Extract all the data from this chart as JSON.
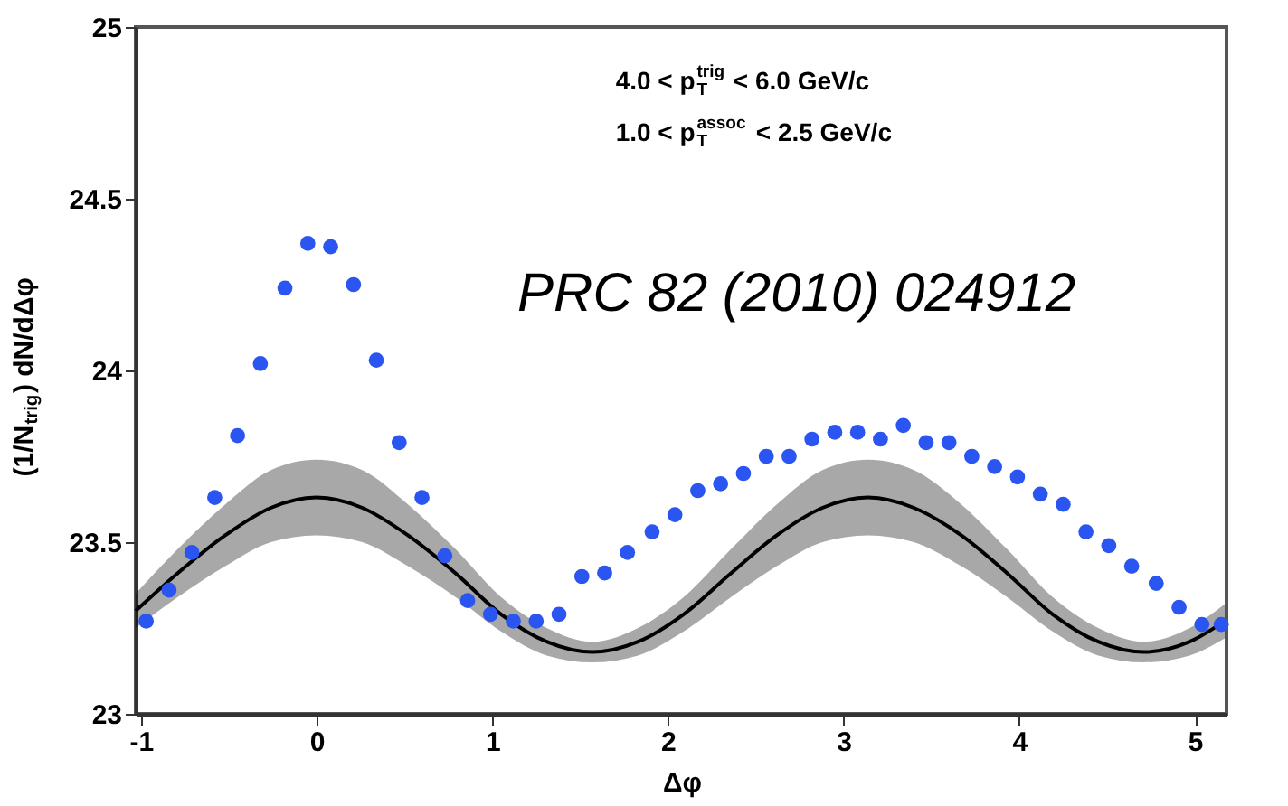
{
  "chart_data": {
    "type": "scatter",
    "xlabel": "Δφ",
    "ylabel": "(1/N$_{trig}$) dN/dΔφ",
    "xlim": [
      -1.03,
      5.18
    ],
    "xticks": [
      -1,
      0,
      1,
      2,
      3,
      4,
      5
    ],
    "ylim": [
      23,
      25
    ],
    "yticks": [
      23,
      23.5,
      24,
      24.5,
      25
    ],
    "grid": false,
    "marker": "circle",
    "annotations": [
      "4.0 < p$_{T}$$^{trig}$ < 6.0 GeV/c",
      "1.0 < p$_{T}$$^{assoc}$ < 2.5 GeV/c",
      "PRC 82 (2010) 024912"
    ],
    "series": [
      {
        "color": "#2a55f0",
        "x": [
          -0.97,
          -0.84,
          -0.71,
          -0.58,
          -0.45,
          -0.32,
          -0.18,
          -0.05,
          0.08,
          0.21,
          0.34,
          0.47,
          0.6,
          0.73,
          0.86,
          0.99,
          1.12,
          1.25,
          1.38,
          1.51,
          1.64,
          1.77,
          1.91,
          2.04,
          2.17,
          2.3,
          2.43,
          2.56,
          2.69,
          2.82,
          2.95,
          3.08,
          3.21,
          3.34,
          3.47,
          3.6,
          3.73,
          3.86,
          3.99,
          4.12,
          4.25,
          4.38,
          4.51,
          4.64,
          4.78,
          4.91,
          5.04,
          5.15
        ],
        "values": [
          23.27,
          23.36,
          23.47,
          23.63,
          23.81,
          24.02,
          24.24,
          24.37,
          24.36,
          24.25,
          24.03,
          23.79,
          23.63,
          23.46,
          23.33,
          23.29,
          23.27,
          23.27,
          23.29,
          23.4,
          23.41,
          23.47,
          23.53,
          23.58,
          23.65,
          23.67,
          23.7,
          23.75,
          23.75,
          23.8,
          23.82,
          23.82,
          23.8,
          23.84,
          23.79,
          23.79,
          23.75,
          23.72,
          23.69,
          23.64,
          23.61,
          23.53,
          23.49,
          23.43,
          23.38,
          23.31,
          23.26,
          23.26
        ]
      },
      {
        "type": "line",
        "marker": "none",
        "color": "#000000",
        "x": [
          -1.03,
          -0.79,
          -0.52,
          -0.26,
          0,
          0.26,
          0.52,
          0.79,
          1.05,
          1.31,
          1.57,
          1.83,
          2.09,
          2.36,
          2.62,
          2.88,
          3.14,
          3.4,
          3.67,
          3.93,
          4.19,
          4.45,
          4.71,
          4.97,
          5.17
        ],
        "values": [
          23.3,
          23.41,
          23.52,
          23.6,
          23.63,
          23.6,
          23.52,
          23.41,
          23.29,
          23.21,
          23.18,
          23.21,
          23.29,
          23.41,
          23.52,
          23.6,
          23.63,
          23.6,
          23.52,
          23.41,
          23.29,
          23.21,
          23.18,
          23.21,
          23.27
        ],
        "lower": [
          23.25,
          23.34,
          23.43,
          23.5,
          23.52,
          23.5,
          23.43,
          23.34,
          23.24,
          23.17,
          23.15,
          23.17,
          23.24,
          23.34,
          23.43,
          23.5,
          23.52,
          23.5,
          23.43,
          23.34,
          23.24,
          23.17,
          23.15,
          23.17,
          23.22
        ],
        "upper": [
          23.35,
          23.48,
          23.61,
          23.71,
          23.74,
          23.71,
          23.61,
          23.48,
          23.34,
          23.25,
          23.21,
          23.25,
          23.34,
          23.48,
          23.61,
          23.71,
          23.74,
          23.71,
          23.61,
          23.48,
          23.34,
          23.25,
          23.21,
          23.25,
          23.32
        ]
      }
    ]
  }
}
